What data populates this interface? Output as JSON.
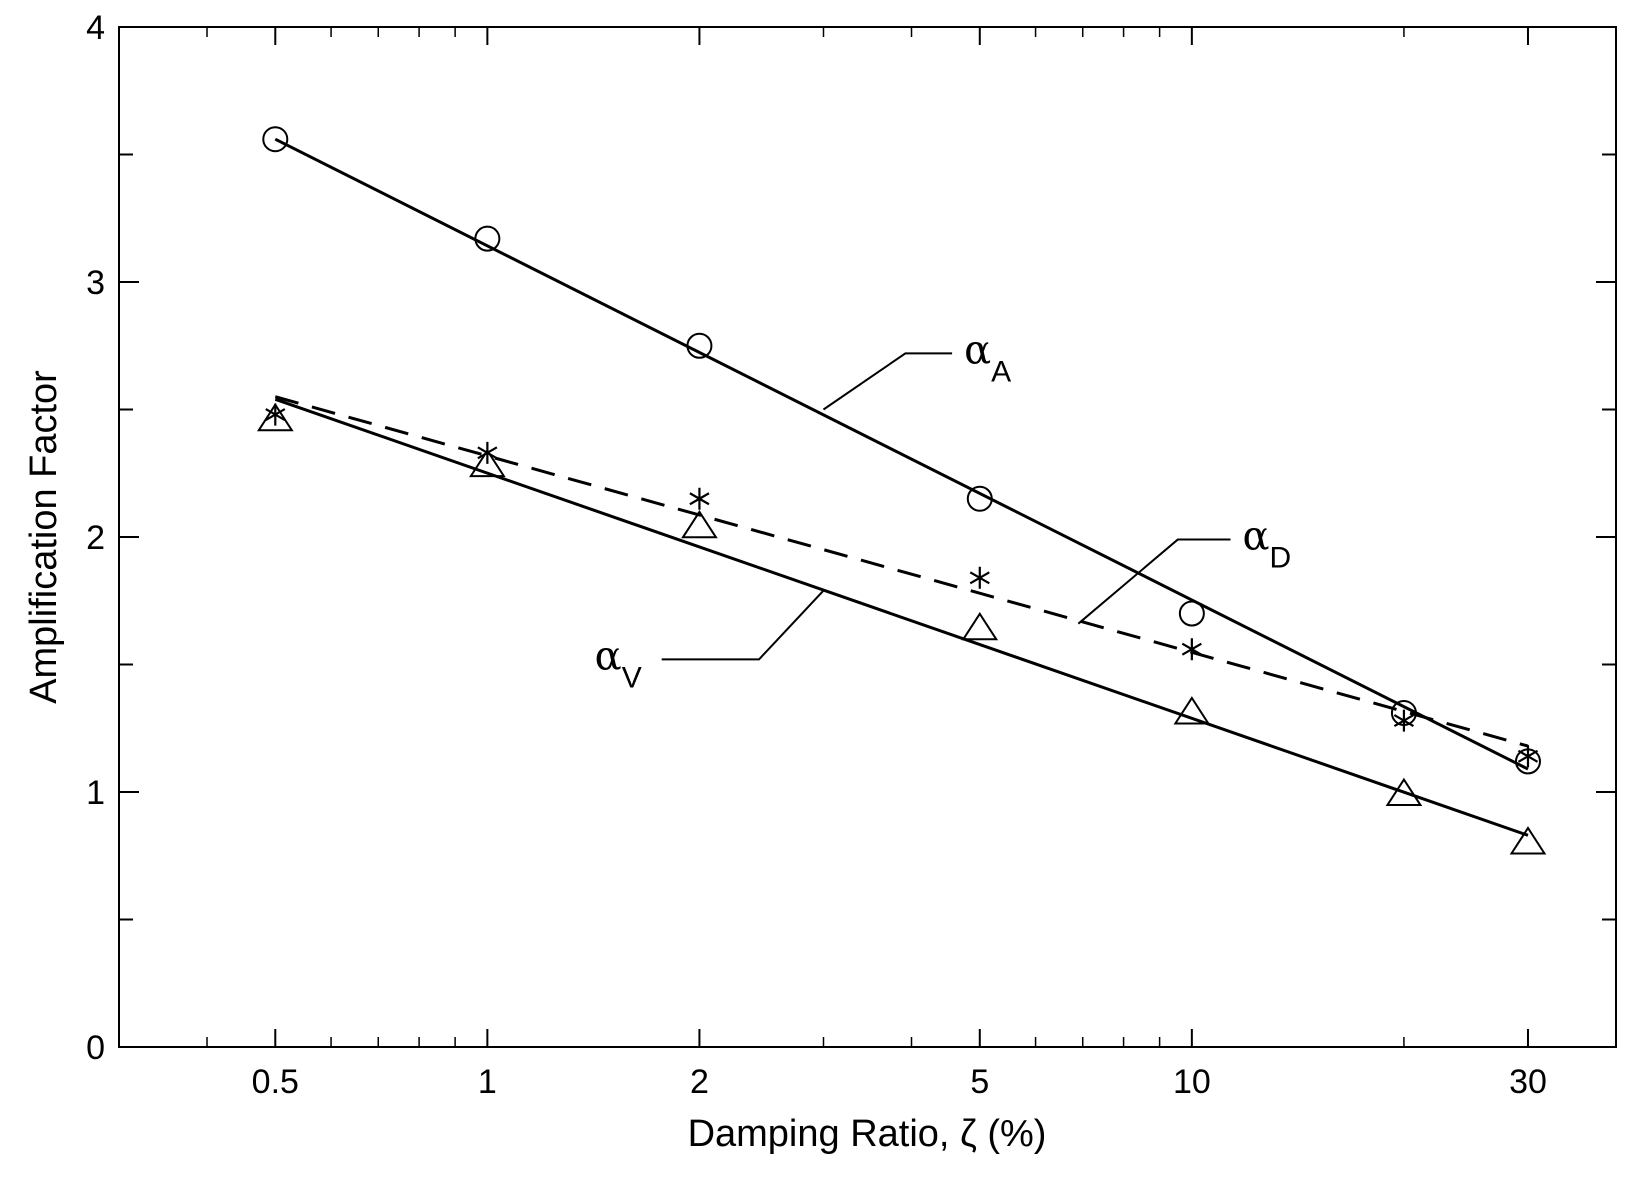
{
  "chart_data": {
    "type": "scatter",
    "xlabel": "Damping Ratio, ζ (%)",
    "ylabel": "Amplification Factor",
    "xscale": "log",
    "xlim": [
      0.3,
      40
    ],
    "ylim": [
      0,
      4
    ],
    "xticks": [
      0.5,
      1,
      2,
      5,
      10,
      30
    ],
    "xtick_labels": [
      "0.5",
      "1",
      "2",
      "5",
      "10",
      "30"
    ],
    "yticks": [
      0,
      1,
      2,
      3,
      4
    ],
    "ytick_labels": [
      "0",
      "1",
      "2",
      "3",
      "4"
    ],
    "grid": false,
    "series": [
      {
        "name": "α",
        "subscript": "A",
        "marker": "circle",
        "line": "solid",
        "x": [
          0.5,
          1,
          2,
          5,
          10,
          20,
          30
        ],
        "y": [
          3.56,
          3.17,
          2.75,
          2.15,
          1.7,
          1.31,
          1.12
        ],
        "fit": [
          [
            0.5,
            3.56
          ],
          [
            30,
            1.09
          ]
        ]
      },
      {
        "name": "α",
        "subscript": "D",
        "marker": "asterisk",
        "line": "dashed",
        "x": [
          0.5,
          1,
          2,
          5,
          10,
          20,
          30
        ],
        "y": [
          2.48,
          2.33,
          2.15,
          1.84,
          1.56,
          1.28,
          1.14
        ],
        "fit": [
          [
            0.5,
            2.55
          ],
          [
            30,
            1.18
          ]
        ]
      },
      {
        "name": "α",
        "subscript": "V",
        "marker": "triangle",
        "line": "solid",
        "x": [
          0.5,
          1,
          2,
          5,
          10,
          20,
          30
        ],
        "y": [
          2.46,
          2.28,
          2.04,
          1.64,
          1.31,
          0.99,
          0.8
        ],
        "fit": [
          [
            0.5,
            2.54
          ],
          [
            30,
            0.83
          ]
        ]
      }
    ],
    "annotations": [
      {
        "series": 0,
        "text": "α",
        "sub": "A",
        "point": [
          3.0,
          2.5
        ],
        "elbow": [
          3.92,
          2.72
        ],
        "label_at": [
          4.75,
          2.72
        ]
      },
      {
        "series": 1,
        "text": "α",
        "sub": "D",
        "point": [
          6.9,
          1.66
        ],
        "elbow": [
          9.55,
          1.99
        ],
        "label_at": [
          11.8,
          1.99
        ]
      },
      {
        "series": 2,
        "text": "α",
        "sub": "V",
        "point": [
          3.0,
          1.79
        ],
        "elbow": [
          2.43,
          1.52
        ],
        "label_at": [
          1.7,
          1.52
        ]
      }
    ]
  }
}
